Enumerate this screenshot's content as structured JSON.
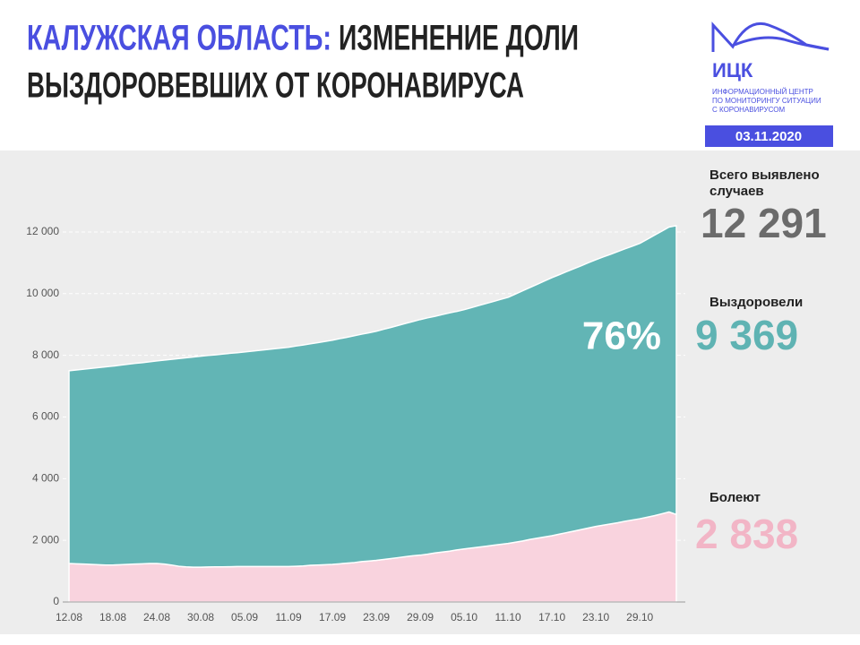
{
  "header": {
    "title_highlight": "КАЛУЖСКАЯ ОБЛАСТЬ:",
    "title_rest": "ИЗМЕНЕНИЕ ДОЛИ",
    "title_line2": "ВЫЗДОРОВЕВШИХ ОТ КОРОНАВИРУСА",
    "logo": "ИЦК",
    "logo_lines": [
      "ИНФОРМАЦИОННЫЙ ЦЕНТР",
      "ПО МОНИТОРИНГУ СИТУАЦИИ",
      "С КОРОНАВИРУСОМ"
    ],
    "date": "03.11.2020"
  },
  "stats": [
    {
      "label": "Всего выявлено",
      "label2": "случаев",
      "value": "12 291",
      "color": "#6b6b6b"
    },
    {
      "label": "Выздоровели",
      "value": "9 369",
      "color": "#5fb3b3"
    },
    {
      "label": "Болеют",
      "value": "2 838",
      "color": "#f2b5c6"
    }
  ],
  "chart_data": {
    "type": "stacked_area",
    "annotation": "76%",
    "categories": [
      "12.08",
      null,
      null,
      null,
      null,
      null,
      "18.08",
      null,
      null,
      null,
      null,
      null,
      "24.08",
      null,
      null,
      null,
      null,
      null,
      "30.08",
      null,
      null,
      null,
      null,
      null,
      "05.09",
      null,
      null,
      null,
      null,
      null,
      "11.09",
      null,
      null,
      null,
      null,
      null,
      "17.09",
      null,
      null,
      null,
      null,
      null,
      "23.09",
      null,
      null,
      null,
      null,
      null,
      "29.09",
      null,
      null,
      null,
      null,
      null,
      "05.10",
      null,
      null,
      null,
      null,
      null,
      "11.10",
      null,
      null,
      null,
      null,
      null,
      "17.10",
      null,
      null,
      null,
      null,
      null,
      "23.10",
      null,
      null,
      null,
      null,
      null,
      "29.10",
      null,
      null,
      null,
      null,
      null
    ],
    "series": [
      {
        "name": "Болеют",
        "color": "#f9d3de",
        "values": [
          1250,
          1240,
          1230,
          1220,
          1210,
          1200,
          1200,
          1210,
          1220,
          1230,
          1240,
          1250,
          1250,
          1230,
          1200,
          1160,
          1140,
          1130,
          1130,
          1135,
          1140,
          1140,
          1145,
          1150,
          1150,
          1150,
          1150,
          1150,
          1150,
          1150,
          1150,
          1160,
          1170,
          1190,
          1200,
          1210,
          1220,
          1240,
          1260,
          1280,
          1310,
          1330,
          1350,
          1380,
          1410,
          1440,
          1470,
          1500,
          1520,
          1550,
          1590,
          1620,
          1650,
          1690,
          1720,
          1750,
          1780,
          1810,
          1840,
          1870,
          1900,
          1940,
          1980,
          2030,
          2070,
          2110,
          2150,
          2200,
          2250,
          2300,
          2350,
          2400,
          2450,
          2490,
          2530,
          2570,
          2620,
          2660,
          2700,
          2750,
          2800,
          2860,
          2920,
          2838
        ]
      },
      {
        "name": "Выздоровели",
        "color": "#62b5b5",
        "values": [
          6250,
          6285,
          6320,
          6355,
          6390,
          6425,
          6450,
          6470,
          6490,
          6510,
          6520,
          6540,
          6570,
          6615,
          6670,
          6735,
          6780,
          6815,
          6840,
          6860,
          6875,
          6900,
          6920,
          6935,
          6960,
          6985,
          7010,
          7035,
          7060,
          7085,
          7110,
          7140,
          7165,
          7185,
          7210,
          7240,
          7270,
          7300,
          7325,
          7355,
          7375,
          7400,
          7430,
          7465,
          7495,
          7530,
          7565,
          7595,
          7640,
          7665,
          7675,
          7700,
          7725,
          7735,
          7760,
          7795,
          7835,
          7870,
          7905,
          7945,
          7980,
          8045,
          8115,
          8170,
          8235,
          8305,
          8370,
          8415,
          8465,
          8510,
          8555,
          8605,
          8650,
          8700,
          8745,
          8795,
          8835,
          8880,
          8930,
          9010,
          9095,
          9165,
          9240,
          9369
        ]
      }
    ],
    "ylim": [
      0,
      12500
    ],
    "yticks": [
      0,
      {
        "value": 2000,
        "label": "2 000"
      },
      {
        "value": 4000,
        "label": "4 000"
      },
      {
        "value": 6000,
        "label": "6 000"
      },
      {
        "value": 8000,
        "label": "8 000"
      },
      {
        "value": 10000,
        "label": "10 000"
      },
      {
        "value": 12000,
        "label": "12 000"
      }
    ],
    "grid": true
  }
}
